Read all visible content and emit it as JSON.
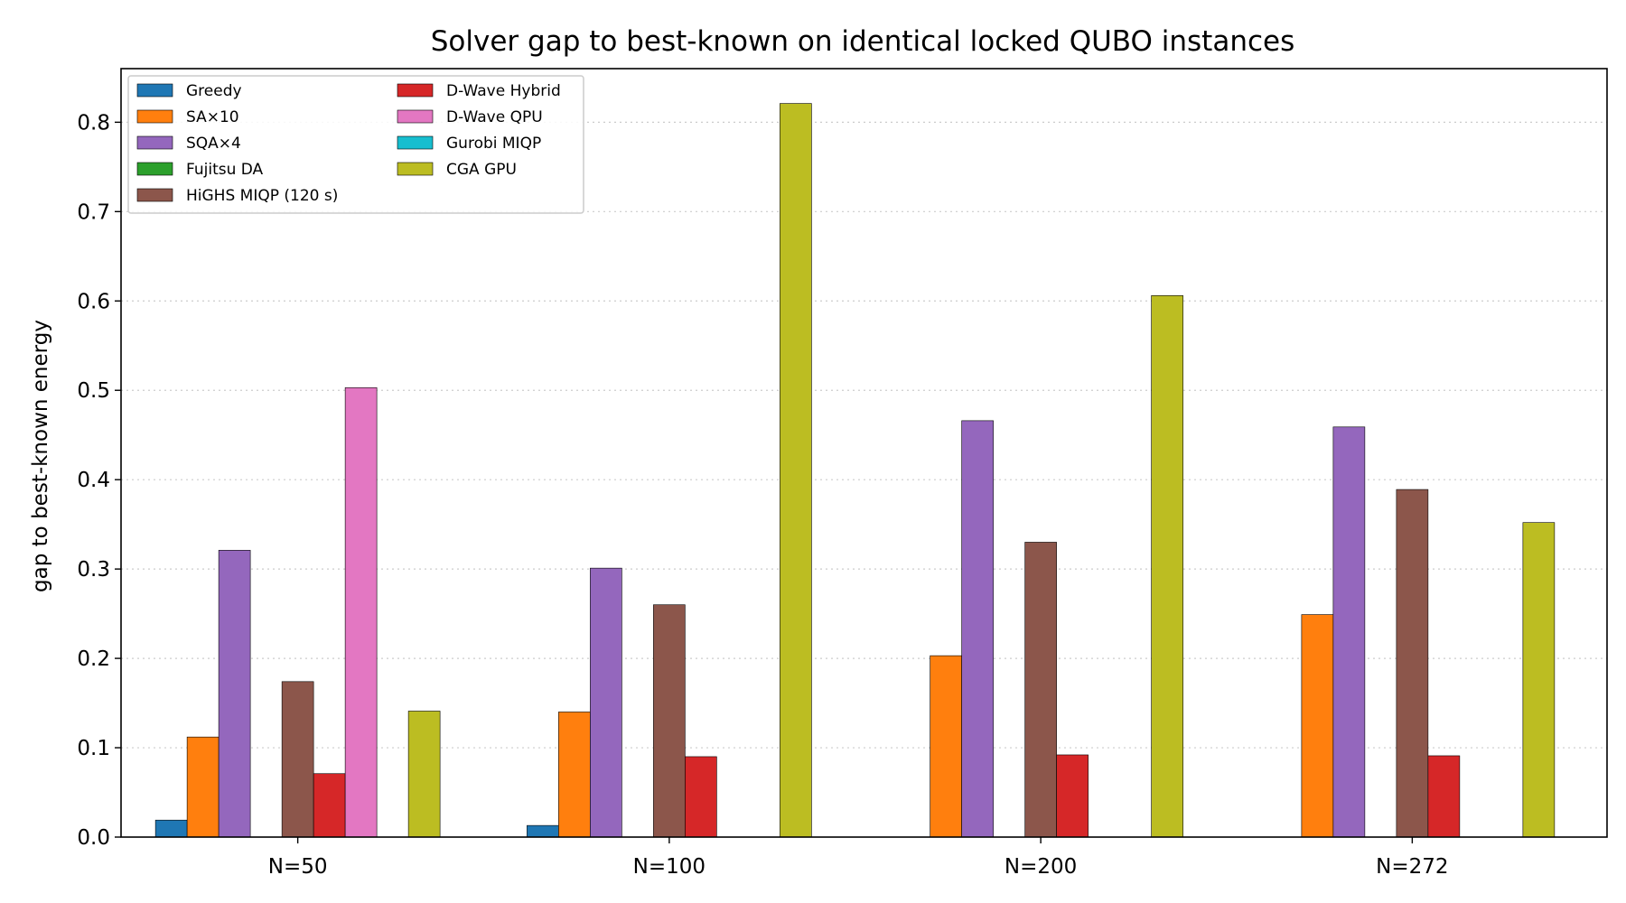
{
  "chart_data": {
    "type": "bar",
    "title": "Solver gap to best-known on identical locked QUBO instances",
    "xlabel": "",
    "ylabel": "gap to best-known energy",
    "ylim": [
      0,
      0.86
    ],
    "yticks": [
      "0.0",
      "0.1",
      "0.2",
      "0.3",
      "0.4",
      "0.5",
      "0.6",
      "0.7",
      "0.8"
    ],
    "grid": "y-dotted",
    "legend_position": "top-left",
    "categories": [
      "N=50",
      "N=100",
      "N=200",
      "N=272"
    ],
    "series": [
      {
        "name": "Greedy",
        "color": "#1f77b4",
        "values": [
          0.019,
          0.013,
          null,
          null
        ]
      },
      {
        "name": "SA×10",
        "color": "#ff7f0e",
        "values": [
          0.112,
          0.14,
          0.203,
          0.249
        ]
      },
      {
        "name": "SQA×4",
        "color": "#9467bd",
        "values": [
          0.321,
          0.301,
          0.466,
          0.459
        ]
      },
      {
        "name": "Fujitsu DA",
        "color": "#2ca02c",
        "values": [
          null,
          null,
          null,
          null
        ]
      },
      {
        "name": "HiGHS MIQP (120 s)",
        "color": "#8c564b",
        "values": [
          0.174,
          0.26,
          0.33,
          0.389
        ]
      },
      {
        "name": "D-Wave Hybrid",
        "color": "#d62728",
        "values": [
          0.071,
          0.09,
          0.092,
          0.091
        ]
      },
      {
        "name": "D-Wave QPU",
        "color": "#e377c2",
        "values": [
          0.503,
          null,
          null,
          null
        ]
      },
      {
        "name": "Gurobi MIQP",
        "color": "#17becf",
        "values": [
          null,
          null,
          null,
          null
        ]
      },
      {
        "name": "CGA GPU",
        "color": "#bcbd22",
        "values": [
          0.141,
          0.821,
          0.606,
          0.352
        ]
      }
    ]
  }
}
